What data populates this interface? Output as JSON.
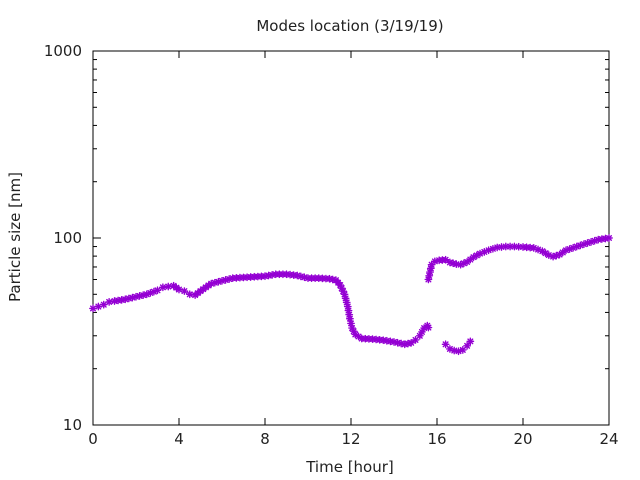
{
  "chart_data": {
    "type": "scatter",
    "title": "Modes location (3/19/19)",
    "xlabel": "Time [hour]",
    "ylabel": "Particle size [nm]",
    "xlim": [
      0,
      24
    ],
    "ylim": [
      10,
      1000
    ],
    "yscale": "log",
    "xticks": [
      0,
      4,
      8,
      12,
      16,
      20,
      24
    ],
    "yticks": [
      10,
      100,
      1000
    ],
    "grid": false,
    "marker_color": "#9400d3",
    "series": [
      {
        "points": [
          [
            0.0,
            42
          ],
          [
            0.25,
            43
          ],
          [
            0.5,
            44
          ],
          [
            0.75,
            45.5
          ],
          [
            1.0,
            46
          ],
          [
            1.5,
            47
          ],
          [
            2.0,
            48.5
          ],
          [
            2.5,
            50
          ],
          [
            3.0,
            52.5
          ],
          [
            3.25,
            54.5
          ],
          [
            3.5,
            55
          ],
          [
            3.75,
            55.5
          ],
          [
            4.0,
            53
          ],
          [
            4.25,
            52
          ],
          [
            4.5,
            50
          ],
          [
            4.75,
            49.5
          ],
          [
            5.0,
            52
          ],
          [
            5.25,
            54.5
          ],
          [
            5.5,
            57
          ],
          [
            6.0,
            59
          ],
          [
            6.5,
            61
          ],
          [
            7.0,
            61.5
          ],
          [
            7.5,
            62
          ],
          [
            8.0,
            62.5
          ],
          [
            8.5,
            64
          ],
          [
            9.0,
            64
          ],
          [
            9.5,
            63
          ],
          [
            10.0,
            61
          ],
          [
            10.5,
            61
          ],
          [
            11.0,
            60.5
          ],
          [
            11.3,
            59.5
          ],
          [
            11.5,
            56
          ],
          [
            11.7,
            50
          ],
          [
            11.85,
            43
          ],
          [
            11.95,
            37
          ],
          [
            12.05,
            33
          ],
          [
            12.2,
            30.5
          ],
          [
            12.5,
            29
          ],
          [
            13.0,
            28.8
          ],
          [
            13.5,
            28.4
          ],
          [
            14.0,
            27.8
          ],
          [
            14.5,
            27
          ],
          [
            14.8,
            27.5
          ],
          [
            15.0,
            28.5
          ],
          [
            15.2,
            30
          ],
          [
            15.4,
            33
          ],
          [
            15.55,
            34
          ],
          [
            15.6,
            33.2
          ],
          [
            15.6,
            60
          ],
          [
            15.75,
            72
          ],
          [
            15.9,
            75
          ],
          [
            16.1,
            76
          ],
          [
            16.4,
            76.5
          ],
          [
            16.6,
            74
          ],
          [
            16.9,
            72.5
          ],
          [
            17.1,
            72
          ],
          [
            17.4,
            74.5
          ],
          [
            17.7,
            79
          ],
          [
            18.0,
            82.5
          ],
          [
            18.4,
            86
          ],
          [
            18.8,
            89
          ],
          [
            19.2,
            90
          ],
          [
            19.6,
            90
          ],
          [
            20.0,
            89.5
          ],
          [
            20.5,
            88.5
          ],
          [
            20.9,
            85
          ],
          [
            21.2,
            81
          ],
          [
            21.4,
            79.5
          ],
          [
            21.7,
            81.5
          ],
          [
            22.0,
            86
          ],
          [
            22.5,
            90
          ],
          [
            23.0,
            94
          ],
          [
            23.5,
            98
          ],
          [
            24.0,
            100
          ],
          [
            16.4,
            27
          ],
          [
            16.6,
            25.5
          ],
          [
            16.8,
            25
          ],
          [
            17.0,
            24.8
          ],
          [
            17.2,
            25.2
          ],
          [
            17.4,
            26.5
          ],
          [
            17.55,
            28
          ]
        ]
      }
    ]
  }
}
